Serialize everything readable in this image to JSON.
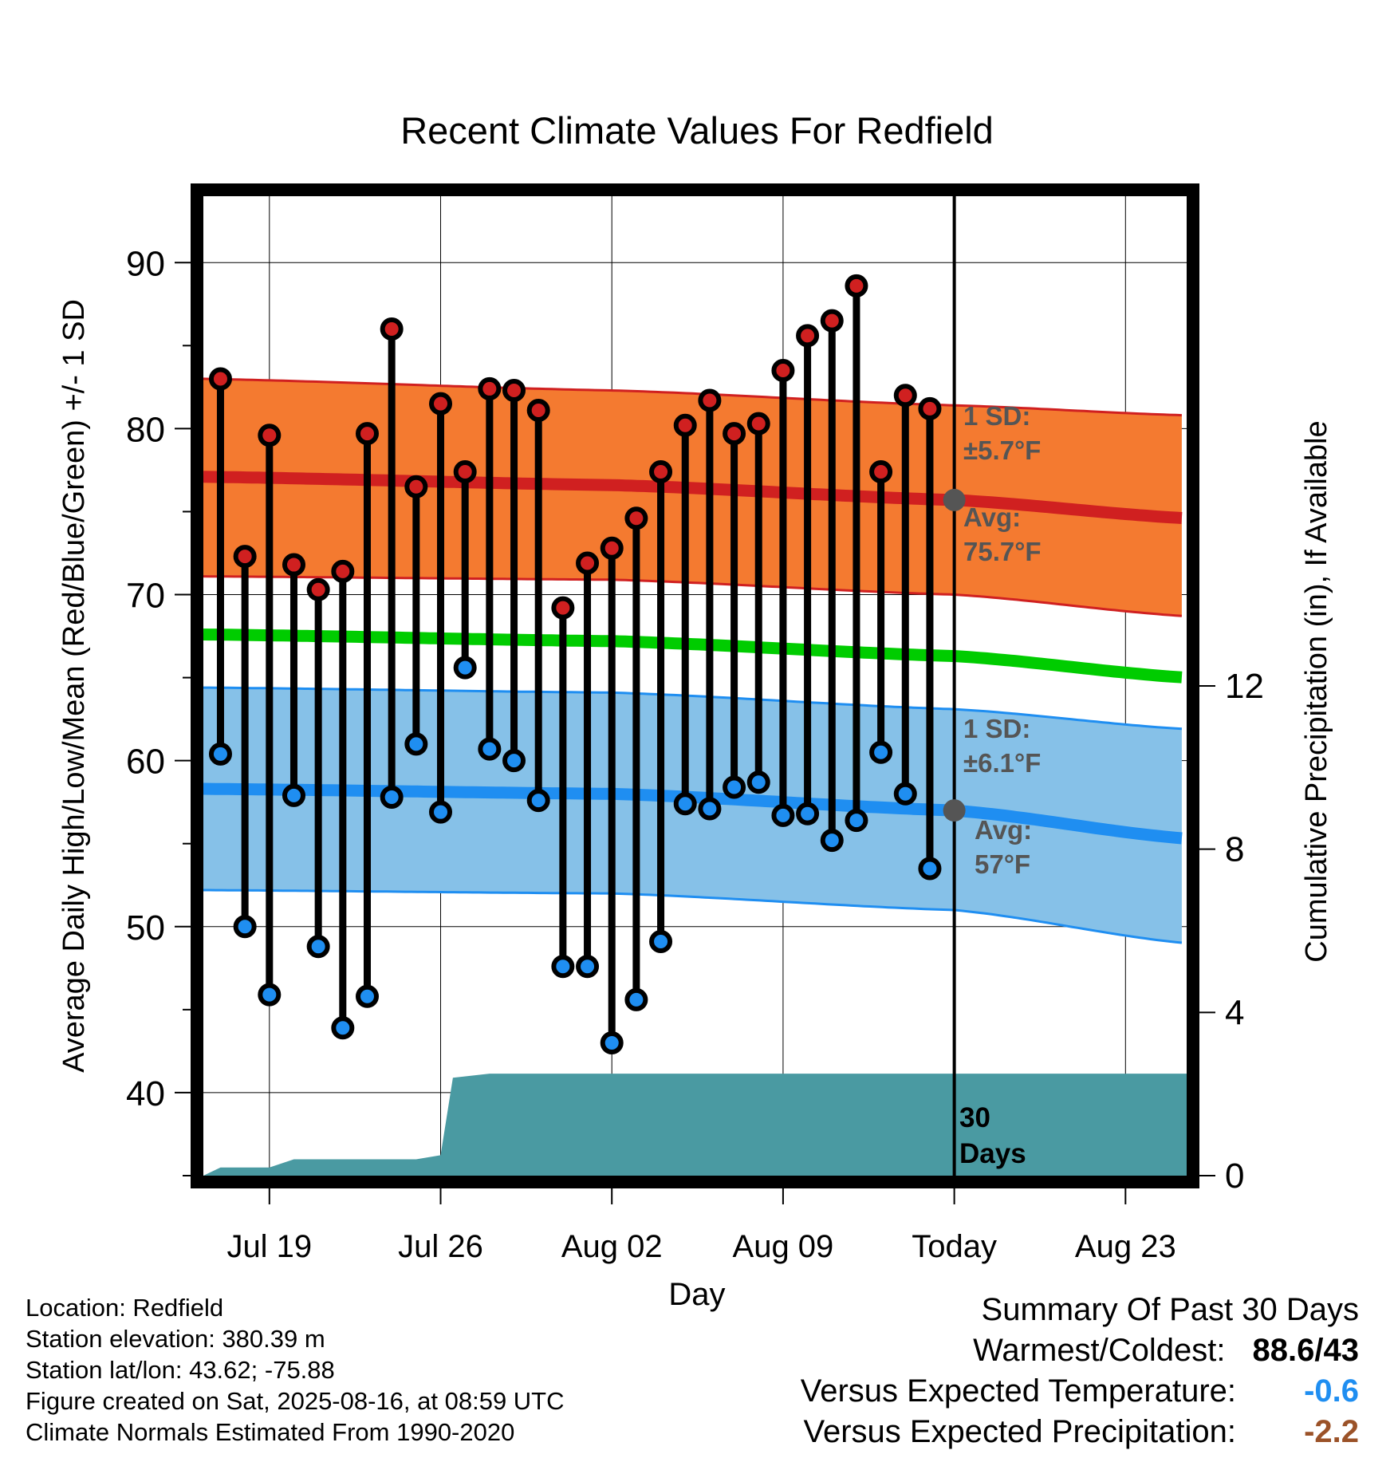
{
  "chart_data": {
    "type": "line",
    "title": "Recent Climate Values For Redfield",
    "xlabel": "Day",
    "ylabel": "Average Daily High/Low/Mean (Red/Blue/Green) +/- 1 SD",
    "y2label": "Cumulative Precipitation (in), If Available",
    "ylim": [
      35,
      94
    ],
    "y2lim": [
      0,
      24
    ],
    "yticks": [
      40,
      50,
      60,
      70,
      80,
      90
    ],
    "y2ticks": [
      0,
      4,
      8,
      12
    ],
    "xticks": [
      {
        "day": 19,
        "label": "Jul 19"
      },
      {
        "day": 26,
        "label": "Jul 26"
      },
      {
        "day": 33,
        "label": "Aug 02"
      },
      {
        "day": 40,
        "label": "Aug 09"
      },
      {
        "day": 47,
        "label": "Today"
      },
      {
        "day": 54,
        "label": "Aug 23"
      }
    ],
    "days": [
      "Jul 17",
      "Jul 18",
      "Jul 19",
      "Jul 20",
      "Jul 21",
      "Jul 22",
      "Jul 23",
      "Jul 24",
      "Jul 25",
      "Jul 26",
      "Jul 27",
      "Jul 28",
      "Jul 29",
      "Jul 30",
      "Jul 31",
      "Aug 01",
      "Aug 02",
      "Aug 03",
      "Aug 04",
      "Aug 05",
      "Aug 06",
      "Aug 07",
      "Aug 08",
      "Aug 09",
      "Aug 10",
      "Aug 11",
      "Aug 12",
      "Aug 13",
      "Aug 14",
      "Aug 15"
    ],
    "highs": [
      83.0,
      72.3,
      79.6,
      71.8,
      70.3,
      71.4,
      79.7,
      86.0,
      76.5,
      81.5,
      77.4,
      82.4,
      82.3,
      81.1,
      69.2,
      71.9,
      72.8,
      74.6,
      77.4,
      80.2,
      81.7,
      79.7,
      80.3,
      83.5,
      85.6,
      86.5,
      88.6,
      77.4,
      82.0,
      81.2
    ],
    "lows": [
      60.4,
      50.0,
      45.9,
      57.9,
      48.8,
      43.9,
      45.8,
      57.8,
      61.0,
      56.9,
      65.6,
      60.7,
      60.0,
      57.6,
      47.6,
      47.6,
      43.0,
      45.6,
      49.1,
      57.4,
      57.1,
      58.4,
      58.7,
      56.7,
      56.8,
      55.2,
      56.4,
      60.5,
      58.0,
      53.5
    ],
    "normals": {
      "avg_high": {
        "x": [
          16.3,
          33,
          47,
          56.5
        ],
        "y": [
          77.1,
          76.6,
          75.7,
          74.6
        ]
      },
      "high_sd_upper": {
        "x": [
          16.3,
          33,
          47,
          56.5
        ],
        "y": [
          83.0,
          82.3,
          81.4,
          80.8
        ]
      },
      "high_sd_lower": {
        "x": [
          16.3,
          33,
          47,
          56.5
        ],
        "y": [
          71.1,
          70.9,
          70.0,
          68.7
        ]
      },
      "avg_mean": {
        "x": [
          16.3,
          33,
          47,
          56.5
        ],
        "y": [
          67.6,
          67.2,
          66.3,
          65.0
        ]
      },
      "avg_low": {
        "x": [
          16.3,
          33,
          47,
          56.5
        ],
        "y": [
          58.3,
          58.0,
          57.0,
          55.3
        ]
      },
      "low_sd_upper": {
        "x": [
          16.3,
          33,
          47,
          56.5
        ],
        "y": [
          64.4,
          64.1,
          63.1,
          61.9
        ]
      },
      "low_sd_lower": {
        "x": [
          16.3,
          33,
          47,
          56.5
        ],
        "y": [
          52.2,
          52.0,
          51.0,
          49.0
        ]
      }
    },
    "precip_cumulative": {
      "x": [
        16.3,
        17,
        19,
        20,
        22,
        23,
        25,
        26,
        26.5,
        28,
        33,
        40,
        47,
        56.5
      ],
      "y": [
        0,
        0.2,
        0.2,
        0.4,
        0.4,
        0.4,
        0.4,
        0.5,
        2.4,
        2.5,
        2.5,
        2.5,
        2.5,
        2.5
      ]
    },
    "annotations": {
      "high_sd": [
        "1 SD:",
        "±5.7°F"
      ],
      "high_avg": [
        "Avg:",
        "75.7°F"
      ],
      "low_sd": [
        "1 SD:",
        "±6.1°F"
      ],
      "low_avg": [
        "Avg:",
        "57°F"
      ],
      "period": [
        "30",
        "Days"
      ]
    }
  },
  "info": {
    "location": "Location: Redfield",
    "elevation": "Station elevation: 380.39 m",
    "latlon": "Station lat/lon: 43.62; -75.88",
    "created": "Figure created on Sat, 2025-08-16, at 08:59 UTC",
    "normals": "Climate Normals Estimated From 1990-2020"
  },
  "summary": {
    "heading": "Summary Of Past 30 Days",
    "warmest_label": "Warmest/Coldest:",
    "warmest_value": "88.6/43",
    "temp_label": "Versus Expected Temperature:",
    "temp_value": "-0.6",
    "precip_label": "Versus Expected Precipitation:",
    "precip_value": "-2.2"
  },
  "colors": {
    "high_band": "#f47a30",
    "high_line": "#d02020",
    "low_band": "#86c1e8",
    "low_line": "#1f8ef1",
    "mean_line": "#00cc00",
    "precip": "#4a9aa2",
    "temp_anomaly": "#1f8ef1",
    "precip_anomaly": "#9b5228"
  }
}
